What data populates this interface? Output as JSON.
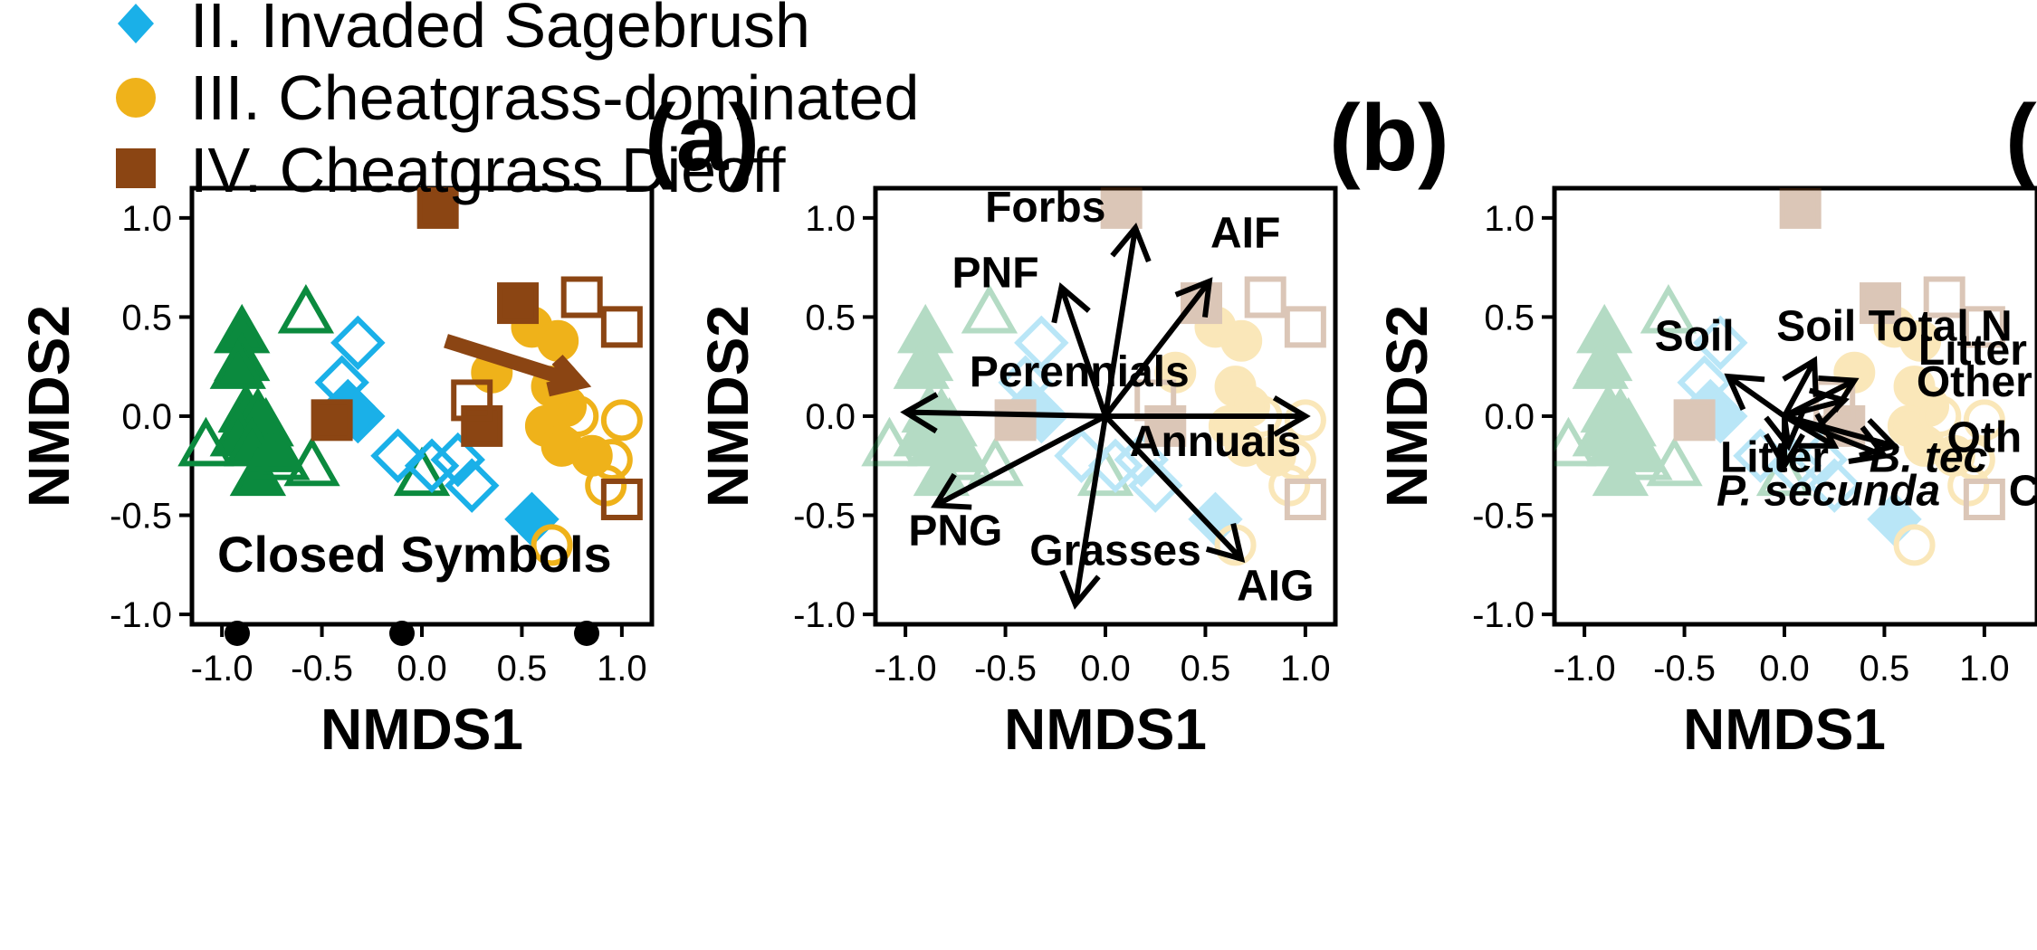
{
  "legend": {
    "items": [
      {
        "label": "II. Invaded Sagebrush",
        "color": "#1ab0e8",
        "shape": "diamond"
      },
      {
        "label": "III. Cheatgrass-dominated",
        "color": "#efb21a",
        "shape": "circle"
      },
      {
        "label": "IV. Cheatgrass Dieoff",
        "color": "#8b4513",
        "shape": "square"
      }
    ]
  },
  "colors": {
    "green": "#0b8a3e",
    "blue": "#1ab0e8",
    "gold": "#efb21a",
    "brown": "#8b4513",
    "arrow_black": "#000000"
  },
  "panels": [
    {
      "letter": "(a)",
      "xlabel": "NMDS1",
      "ylabel": "NMDS2",
      "xticks": [
        "-1.0",
        "-0.5",
        "0.0",
        "0.5",
        "1.0"
      ],
      "yticks": [
        "-1.0",
        "-0.5",
        "0.0",
        "0.5",
        "1.0"
      ],
      "note": "Closed Symbols"
    },
    {
      "letter": "(b)",
      "xlabel": "NMDS1",
      "ylabel": "NMDS2",
      "xticks": [
        "-1.0",
        "-0.5",
        "0.0",
        "0.5",
        "1.0"
      ],
      "yticks": [
        "-1.0",
        "-0.5",
        "0.0",
        "0.5",
        "1.0"
      ]
    },
    {
      "letter": "(",
      "xlabel": "NMDS1",
      "ylabel": "NMDS2",
      "xticks": [
        "-1.0",
        "-0.5",
        "0.0",
        "0.5",
        "1.0"
      ],
      "yticks": [
        "-1.0",
        "-0.5",
        "0.0",
        "0.5",
        "1.0"
      ]
    }
  ],
  "chart_data": [
    {
      "type": "scatter",
      "title": "(a)",
      "xlabel": "NMDS1",
      "ylabel": "NMDS2",
      "xlim": [
        -1.15,
        1.15
      ],
      "ylim": [
        -1.05,
        1.15
      ],
      "note": "Closed Symbols",
      "points": [
        {
          "g": "green",
          "f": true,
          "x": -0.9,
          "y": 0.42
        },
        {
          "g": "green",
          "f": true,
          "x": -0.9,
          "y": 0.28
        },
        {
          "g": "green",
          "f": true,
          "x": -0.92,
          "y": 0.24
        },
        {
          "g": "green",
          "f": true,
          "x": -0.88,
          "y": 0.02
        },
        {
          "g": "green",
          "f": true,
          "x": -0.82,
          "y": 0.0
        },
        {
          "g": "green",
          "f": true,
          "x": -0.78,
          "y": -0.05
        },
        {
          "g": "green",
          "f": true,
          "x": -0.92,
          "y": -0.1
        },
        {
          "g": "green",
          "f": true,
          "x": -0.85,
          "y": -0.15
        },
        {
          "g": "green",
          "f": true,
          "x": -0.82,
          "y": -0.3
        },
        {
          "g": "green",
          "f": true,
          "x": -0.74,
          "y": -0.18
        },
        {
          "g": "green",
          "f": false,
          "x": -0.58,
          "y": 0.52
        },
        {
          "g": "green",
          "f": false,
          "x": -1.08,
          "y": -0.15
        },
        {
          "g": "green",
          "f": false,
          "x": -0.7,
          "y": -0.22
        },
        {
          "g": "green",
          "f": false,
          "x": -0.55,
          "y": -0.25
        },
        {
          "g": "green",
          "f": false,
          "x": 0.0,
          "y": -0.3
        },
        {
          "g": "blue",
          "f": false,
          "x": -0.32,
          "y": 0.37
        },
        {
          "g": "blue",
          "f": false,
          "x": -0.4,
          "y": 0.17
        },
        {
          "g": "blue",
          "f": true,
          "x": -0.37,
          "y": 0.05
        },
        {
          "g": "blue",
          "f": true,
          "x": -0.32,
          "y": 0.0
        },
        {
          "g": "blue",
          "f": false,
          "x": -0.12,
          "y": -0.2
        },
        {
          "g": "blue",
          "f": false,
          "x": 0.05,
          "y": -0.25
        },
        {
          "g": "blue",
          "f": false,
          "x": 0.18,
          "y": -0.22
        },
        {
          "g": "blue",
          "f": false,
          "x": 0.25,
          "y": -0.35
        },
        {
          "g": "blue",
          "f": true,
          "x": 0.55,
          "y": -0.52
        },
        {
          "g": "gold",
          "f": true,
          "x": 0.55,
          "y": 0.45
        },
        {
          "g": "gold",
          "f": true,
          "x": 0.68,
          "y": 0.38
        },
        {
          "g": "gold",
          "f": true,
          "x": 0.35,
          "y": 0.22
        },
        {
          "g": "gold",
          "f": true,
          "x": 0.65,
          "y": 0.15
        },
        {
          "g": "gold",
          "f": true,
          "x": 0.72,
          "y": 0.05
        },
        {
          "g": "gold",
          "f": true,
          "x": 0.62,
          "y": -0.05
        },
        {
          "g": "gold",
          "f": true,
          "x": 0.7,
          "y": -0.15
        },
        {
          "g": "gold",
          "f": true,
          "x": 0.85,
          "y": -0.2
        },
        {
          "g": "gold",
          "f": false,
          "x": 0.78,
          "y": 0.0
        },
        {
          "g": "gold",
          "f": false,
          "x": 1.0,
          "y": -0.02
        },
        {
          "g": "gold",
          "f": false,
          "x": 0.95,
          "y": -0.22
        },
        {
          "g": "gold",
          "f": false,
          "x": 0.92,
          "y": -0.35
        },
        {
          "g": "gold",
          "f": false,
          "x": 0.65,
          "y": -0.65
        },
        {
          "g": "brown",
          "f": true,
          "x": 0.08,
          "y": 1.05
        },
        {
          "g": "brown",
          "f": true,
          "x": 0.48,
          "y": 0.57
        },
        {
          "g": "brown",
          "f": true,
          "x": -0.45,
          "y": -0.02
        },
        {
          "g": "brown",
          "f": true,
          "x": 0.3,
          "y": -0.05
        },
        {
          "g": "brown",
          "f": false,
          "x": 0.8,
          "y": 0.6
        },
        {
          "g": "brown",
          "f": false,
          "x": 1.0,
          "y": 0.45
        },
        {
          "g": "brown",
          "f": false,
          "x": 0.25,
          "y": 0.08
        },
        {
          "g": "brown",
          "f": false,
          "x": 1.0,
          "y": -0.42
        }
      ],
      "arrow": {
        "x0": 0.12,
        "y0": 0.38,
        "x1": 0.78,
        "y1": 0.17
      }
    },
    {
      "type": "scatter",
      "title": "(b)",
      "xlabel": "NMDS1",
      "ylabel": "NMDS2",
      "xlim": [
        -1.15,
        1.15
      ],
      "ylim": [
        -1.05,
        1.15
      ],
      "vectors": [
        {
          "label": "Forbs",
          "x": 0.15,
          "y": 0.95,
          "lx": -0.3,
          "ly": 0.98
        },
        {
          "label": "AIF",
          "x": 0.52,
          "y": 0.68,
          "lx": 0.7,
          "ly": 0.85
        },
        {
          "label": "PNF",
          "x": -0.22,
          "y": 0.65,
          "lx": -0.55,
          "ly": 0.65
        },
        {
          "label": "Perennials",
          "x": -1.0,
          "y": 0.02,
          "lx": -0.13,
          "ly": 0.15
        },
        {
          "label": "Annuals",
          "x": 1.0,
          "y": 0.0,
          "lx": 0.55,
          "ly": -0.2
        },
        {
          "label": "PNG",
          "x": -0.85,
          "y": -0.45,
          "lx": -0.75,
          "ly": -0.65
        },
        {
          "label": "Grasses",
          "x": -0.15,
          "y": -0.95,
          "lx": 0.05,
          "ly": -0.75
        },
        {
          "label": "AIG",
          "x": 0.68,
          "y": -0.72,
          "lx": 0.85,
          "ly": -0.93
        }
      ]
    },
    {
      "type": "scatter",
      "title": "(",
      "xlabel": "NMDS1",
      "ylabel": "NMDS2",
      "xlim": [
        -1.15,
        1.15
      ],
      "ylim": [
        -1.05,
        1.15
      ],
      "vectors": [
        {
          "label": "Soil Total N",
          "x": 0.15,
          "y": 0.28,
          "lx": 0.55,
          "ly": 0.38
        },
        {
          "label": "Soil",
          "x": -0.28,
          "y": 0.2,
          "lx": -0.45,
          "ly": 0.33
        },
        {
          "label": "Litter C",
          "x": 0.35,
          "y": 0.18,
          "lx": 1.05,
          "ly": 0.26
        },
        {
          "label": "Other",
          "x": 0.3,
          "y": 0.08,
          "lx": 0.95,
          "ly": 0.1
        },
        {
          "label": "Oth",
          "x": 0.55,
          "y": -0.15,
          "lx": 1.0,
          "ly": -0.18
        },
        {
          "label": "Litter",
          "x": 0.02,
          "y": -0.15,
          "lx": -0.05,
          "ly": -0.28
        },
        {
          "label": "B. tec",
          "x": 0.25,
          "y": -0.15,
          "lx": 0.72,
          "ly": -0.28,
          "italic": true
        },
        {
          "label": "P. secunda",
          "x": 0.0,
          "y": -0.25,
          "lx": 0.22,
          "ly": -0.45,
          "italic": true
        },
        {
          "label": "C",
          "x": 0.5,
          "y": -0.2,
          "lx": 1.2,
          "ly": -0.45
        }
      ]
    }
  ]
}
